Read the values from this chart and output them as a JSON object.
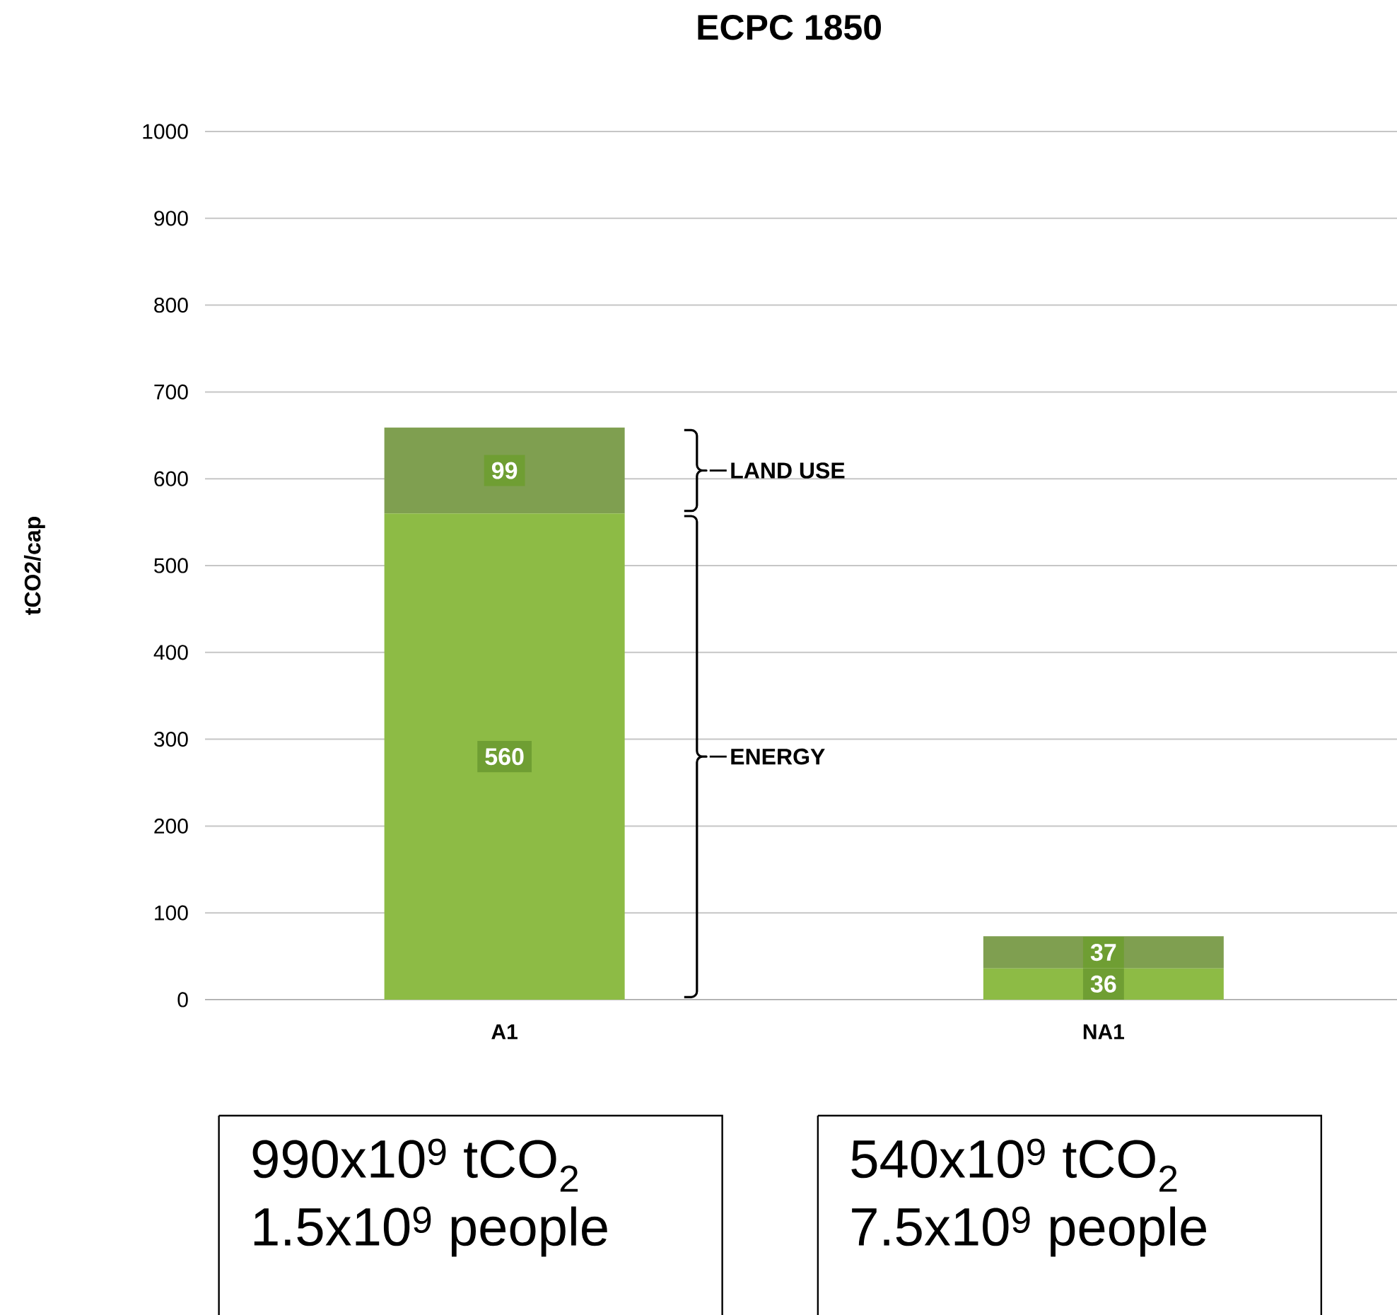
{
  "chart_data": {
    "type": "bar",
    "title": "ECPC 1850",
    "ylabel": "tCO2/cap",
    "categories": [
      "A1",
      "NA1"
    ],
    "stacked": true,
    "data_labels": true,
    "grid": "y",
    "ylim": [
      0,
      1000
    ],
    "yticks": [
      0,
      100,
      200,
      300,
      400,
      500,
      600,
      700,
      800,
      900,
      1000
    ],
    "series": [
      {
        "color": "#8dbb45",
        "values": [
          560,
          36
        ]
      },
      {
        "color": "#7f9f50",
        "values": [
          99,
          37
        ]
      }
    ],
    "annotations": [
      "LAND USE",
      "ENERGY",
      "990x10$^{9}$ tCO$_{2}$",
      "1.5x10$^{9}$ people",
      "540x10$^{9}$ tCO$_{2}$",
      "7.5x10$^{9}$ people"
    ]
  }
}
